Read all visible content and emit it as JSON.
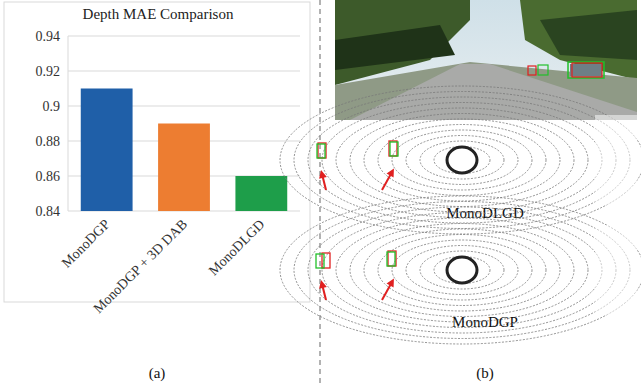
{
  "chart_data": {
    "type": "bar",
    "title": "Depth MAE Comparison",
    "categories": [
      "MonoDGP",
      "MonoDGP + 3D DAB",
      "MonoDLGD"
    ],
    "values": [
      0.91,
      0.89,
      0.86
    ],
    "colors": [
      "#1f5fa8",
      "#ed7d31",
      "#1e9e4a"
    ],
    "ylim": [
      0.84,
      0.94
    ],
    "yticks": [
      0.84,
      0.86,
      0.88,
      0.9,
      0.92,
      0.94
    ],
    "grid": true
  },
  "figure": {
    "panel_labels": [
      "(a)",
      "(b)"
    ],
    "captions": [
      "MonoDLGD",
      "MonoDGP"
    ]
  }
}
